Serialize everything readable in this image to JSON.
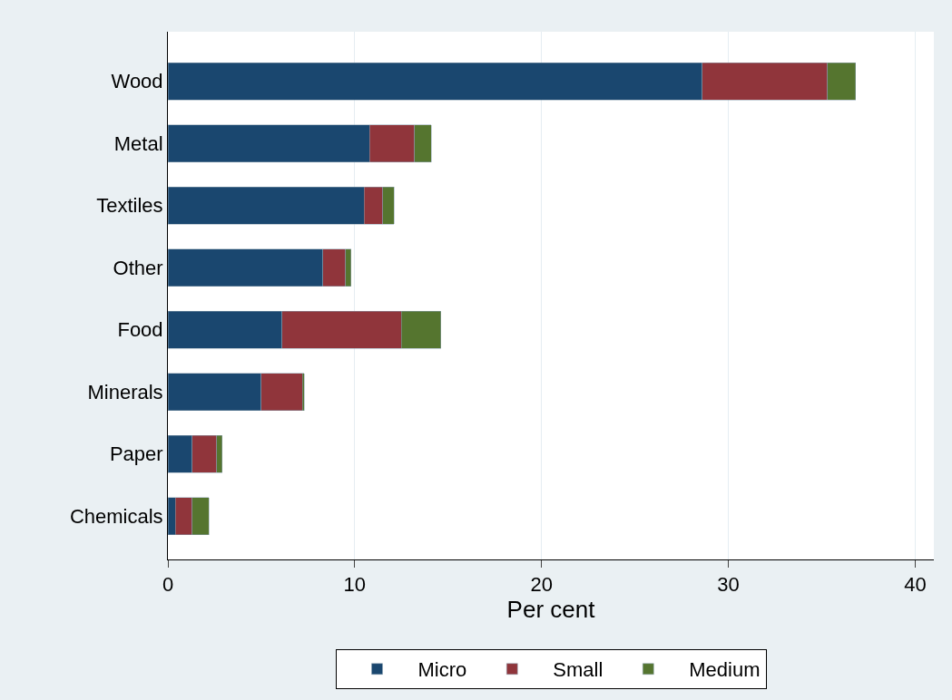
{
  "chart_data": {
    "type": "bar",
    "orientation": "horizontal",
    "stacked": true,
    "xlabel": "Per cent",
    "categories": [
      "Wood",
      "Metal",
      "Textiles",
      "Other",
      "Food",
      "Minerals",
      "Paper",
      "Chemicals"
    ],
    "series": [
      {
        "name": "Micro",
        "color": "#1a476f",
        "values": [
          28.6,
          10.8,
          10.5,
          8.3,
          6.1,
          5.0,
          1.3,
          0.4
        ]
      },
      {
        "name": "Small",
        "color": "#90353b",
        "values": [
          6.7,
          2.4,
          1.0,
          1.2,
          6.4,
          2.2,
          1.3,
          0.9
        ]
      },
      {
        "name": "Medium",
        "color": "#55752f",
        "values": [
          1.5,
          0.9,
          0.6,
          0.3,
          2.1,
          0.1,
          0.3,
          0.9
        ]
      }
    ],
    "xlim": [
      0,
      41
    ],
    "xticks": [
      0,
      10,
      20,
      30,
      40
    ],
    "grid": "x",
    "legend": "bottom"
  }
}
